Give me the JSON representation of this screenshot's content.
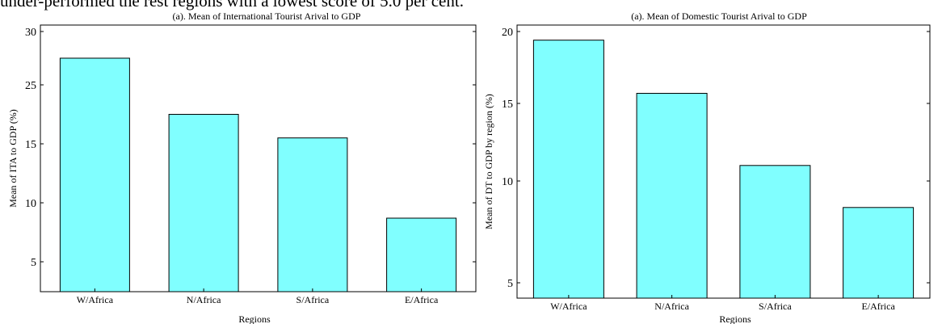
{
  "page": {
    "header_text": "under-performed the rest regions with a lowest score of 5.0 per cent."
  },
  "chart_data": [
    {
      "type": "bar",
      "title": "(a). Mean of International Tourist Arival to GDP",
      "xlabel": "Regions",
      "ylabel": "Mean of ITA to GDP (%)",
      "categories": [
        "W/Africa",
        "N/Africa",
        "S/Africa",
        "E/Africa"
      ],
      "values": [
        27.5,
        20.0,
        16.0,
        8.7
      ],
      "y_ticks": [
        5,
        10,
        15,
        25,
        30
      ],
      "ylim": [
        2.5,
        31.0
      ],
      "bar_color": "#80ffff",
      "grid": false
    },
    {
      "type": "bar",
      "title": "(a). Mean of Domestic Tourist Arival to GDP",
      "xlabel": "Regions",
      "ylabel": "Mean of DT to GDP by region (%)",
      "categories": [
        "W/Africa",
        "N/Africa",
        "S/Africa",
        "E/Africa"
      ],
      "values": [
        19.4,
        15.7,
        11.0,
        8.7
      ],
      "y_ticks": [
        5,
        10,
        15,
        20
      ],
      "ylim": [
        2.5,
        22.0
      ],
      "bar_color": "#80ffff",
      "grid": false
    }
  ]
}
